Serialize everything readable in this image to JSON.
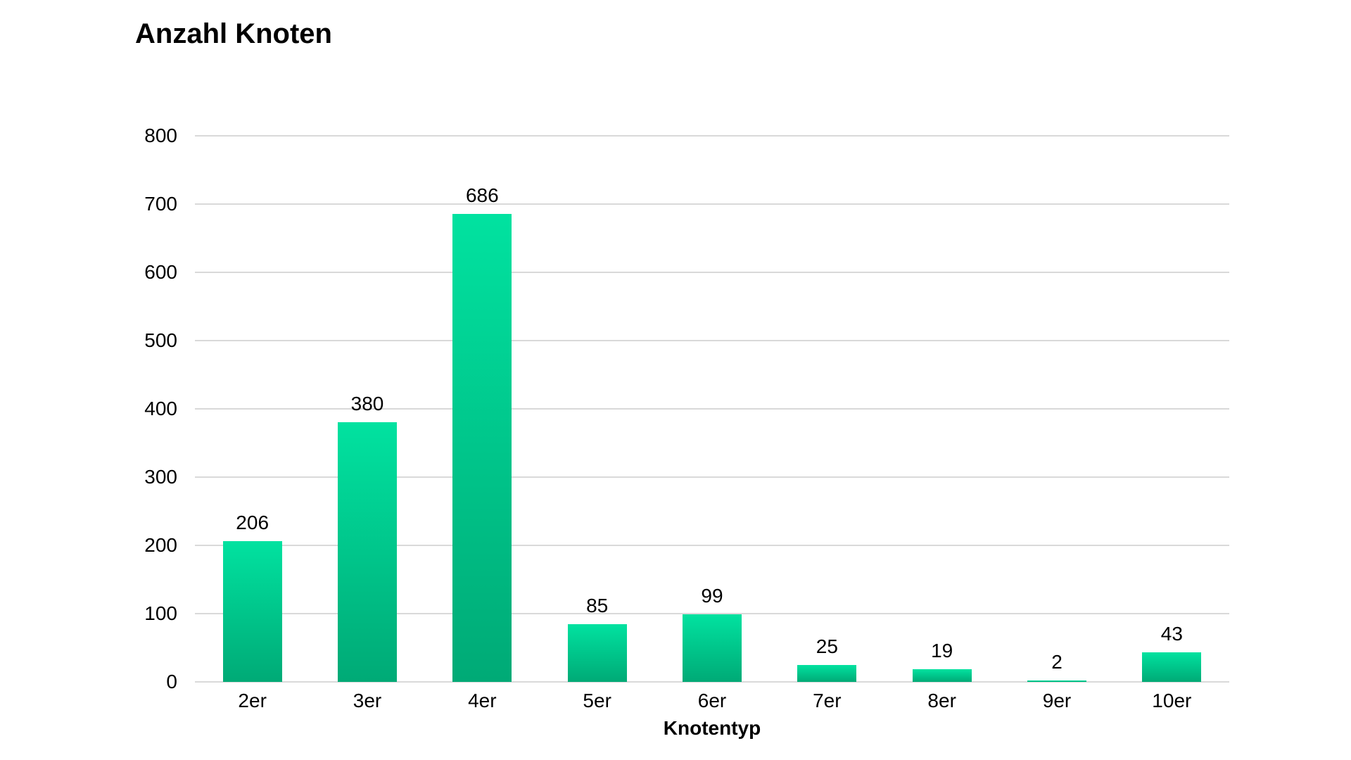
{
  "chart_data": {
    "type": "bar",
    "title": "Anzahl Knoten",
    "xlabel": "Knotentyp",
    "ylabel": "",
    "categories": [
      "2er",
      "3er",
      "4er",
      "5er",
      "6er",
      "7er",
      "8er",
      "9er",
      "10er"
    ],
    "values": [
      206,
      380,
      686,
      85,
      99,
      25,
      19,
      2,
      43
    ],
    "value_labels": [
      "206",
      "380",
      "686",
      "85",
      "99",
      "25",
      "19",
      "2",
      "43"
    ],
    "ylim": [
      0,
      800
    ],
    "ytick_step": 100,
    "yticks": [
      0,
      100,
      200,
      300,
      400,
      500,
      600,
      700,
      800
    ],
    "grid": true,
    "legend": false,
    "colors": {
      "bar_gradient_top": "#01e2a0",
      "bar_gradient_bottom": "#00aa76",
      "gridline": "#d9d9d9",
      "text": "#000000"
    }
  }
}
